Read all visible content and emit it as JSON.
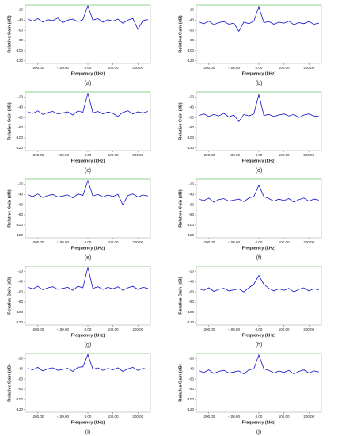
{
  "chart_data": [
    {
      "type": "line",
      "caption": "(a)",
      "xlabel": "Frequency (kHz)",
      "ylabel": "Relative Gain (dB)",
      "color": "#1010cc",
      "xlim": [
        -250,
        250
      ],
      "ylim": [
        -125,
        -10
      ],
      "xticks": [
        {
          "value": -200,
          "label": "-200.00"
        },
        {
          "value": -100,
          "label": "-100.00"
        },
        {
          "value": 0,
          "label": "0.00"
        },
        {
          "value": 100,
          "label": "100.00"
        },
        {
          "value": 200,
          "label": "200.00"
        }
      ],
      "yticks": [
        -20,
        -40,
        -60,
        -80,
        -100,
        -120
      ],
      "x": [
        -240,
        -220,
        -200,
        -180,
        -160,
        -140,
        -120,
        -100,
        -80,
        -60,
        -40,
        -20,
        0,
        20,
        40,
        60,
        80,
        100,
        120,
        140,
        160,
        180,
        200,
        220,
        240
      ],
      "values": [
        -38,
        -42,
        -37,
        -44,
        -39,
        -41,
        -36,
        -45,
        -40,
        -38,
        -43,
        -39,
        -12,
        -40,
        -37,
        -44,
        -39,
        -42,
        -38,
        -46,
        -40,
        -37,
        -58,
        -41,
        -39
      ]
    },
    {
      "type": "line",
      "caption": "(b)",
      "xlabel": "Frequency (kHz)",
      "ylabel": "Relative Gain (dB)",
      "color": "#1010cc",
      "xlim": [
        -250,
        250
      ],
      "ylim": [
        -125,
        -10
      ],
      "xticks": [
        {
          "value": -200,
          "label": "-200.00"
        },
        {
          "value": -100,
          "label": "-100.00"
        },
        {
          "value": 0,
          "label": "0.00"
        },
        {
          "value": 100,
          "label": "100.00"
        },
        {
          "value": 200,
          "label": "200.00"
        }
      ],
      "yticks": [
        -20,
        -40,
        -60,
        -80,
        -100,
        -120
      ],
      "x": [
        -240,
        -220,
        -200,
        -180,
        -160,
        -140,
        -120,
        -100,
        -80,
        -60,
        -40,
        -20,
        0,
        20,
        40,
        60,
        80,
        100,
        120,
        140,
        160,
        180,
        200,
        220,
        240
      ],
      "values": [
        -44,
        -47,
        -42,
        -49,
        -45,
        -43,
        -48,
        -46,
        -62,
        -44,
        -47,
        -42,
        -14,
        -45,
        -43,
        -48,
        -44,
        -46,
        -42,
        -49,
        -45,
        -47,
        -43,
        -48,
        -46
      ]
    },
    {
      "type": "line",
      "caption": "(c)",
      "xlabel": "Frequency (kHz)",
      "ylabel": "Relative Gain (dB)",
      "color": "#1010cc",
      "xlim": [
        -250,
        250
      ],
      "ylim": [
        -125,
        -10
      ],
      "xticks": [
        {
          "value": -200,
          "label": "-200.00"
        },
        {
          "value": -100,
          "label": "-100.00"
        },
        {
          "value": 0,
          "label": "0.00"
        },
        {
          "value": 100,
          "label": "100.00"
        },
        {
          "value": 200,
          "label": "200.00"
        }
      ],
      "yticks": [
        -20,
        -40,
        -60,
        -80,
        -100,
        -120
      ],
      "x": [
        -240,
        -220,
        -200,
        -180,
        -160,
        -140,
        -120,
        -100,
        -80,
        -60,
        -40,
        -20,
        0,
        20,
        40,
        60,
        80,
        100,
        120,
        140,
        160,
        180,
        200,
        220,
        240
      ],
      "values": [
        -49,
        -52,
        -47,
        -54,
        -50,
        -48,
        -53,
        -51,
        -49,
        -55,
        -47,
        -50,
        -12,
        -51,
        -48,
        -53,
        -49,
        -52,
        -58,
        -50,
        -47,
        -53,
        -49,
        -51,
        -48
      ]
    },
    {
      "type": "line",
      "caption": "(d)",
      "xlabel": "Frequency (kHz)",
      "ylabel": "Relative Gain (dB)",
      "color": "#1010cc",
      "xlim": [
        -250,
        250
      ],
      "ylim": [
        -125,
        -10
      ],
      "xticks": [
        {
          "value": -200,
          "label": "-200.00"
        },
        {
          "value": -100,
          "label": "-100.00"
        },
        {
          "value": 0,
          "label": "0.00"
        },
        {
          "value": 100,
          "label": "100.00"
        },
        {
          "value": 200,
          "label": "200.00"
        }
      ],
      "yticks": [
        -20,
        -40,
        -60,
        -80,
        -100,
        -120
      ],
      "x": [
        -240,
        -220,
        -200,
        -180,
        -160,
        -140,
        -120,
        -100,
        -80,
        -60,
        -40,
        -20,
        0,
        20,
        40,
        60,
        80,
        100,
        120,
        140,
        160,
        180,
        200,
        220,
        240
      ],
      "values": [
        -56,
        -53,
        -58,
        -54,
        -57,
        -52,
        -59,
        -55,
        -68,
        -54,
        -57,
        -53,
        -15,
        -56,
        -54,
        -58,
        -55,
        -53,
        -57,
        -54,
        -60,
        -55,
        -53,
        -57,
        -58
      ]
    },
    {
      "type": "line",
      "caption": "(e)",
      "xlabel": "Frequency (kHz)",
      "ylabel": "Relative Gain (dB)",
      "color": "#1010cc",
      "xlim": [
        -250,
        250
      ],
      "ylim": [
        -125,
        -10
      ],
      "xticks": [
        {
          "value": -200,
          "label": "-200.00"
        },
        {
          "value": -100,
          "label": "-100.00"
        },
        {
          "value": 0,
          "label": "0.00"
        },
        {
          "value": 100,
          "label": "100.00"
        },
        {
          "value": 200,
          "label": "200.00"
        }
      ],
      "yticks": [
        -20,
        -40,
        -60,
        -80,
        -100,
        -120
      ],
      "x": [
        -240,
        -220,
        -200,
        -180,
        -160,
        -140,
        -120,
        -100,
        -80,
        -60,
        -40,
        -20,
        0,
        20,
        40,
        60,
        80,
        100,
        120,
        140,
        160,
        180,
        200,
        220,
        240
      ],
      "values": [
        -41,
        -44,
        -39,
        -46,
        -42,
        -40,
        -45,
        -43,
        -41,
        -47,
        -39,
        -42,
        -13,
        -43,
        -40,
        -45,
        -41,
        -44,
        -40,
        -60,
        -42,
        -39,
        -45,
        -41,
        -43
      ]
    },
    {
      "type": "line",
      "caption": "(f)",
      "xlabel": "Frequency (kHz)",
      "ylabel": "Relative Gain (dB)",
      "color": "#1010cc",
      "xlim": [
        -250,
        250
      ],
      "ylim": [
        -125,
        -10
      ],
      "xticks": [
        {
          "value": -200,
          "label": "-200.00"
        },
        {
          "value": -100,
          "label": "-100.00"
        },
        {
          "value": 0,
          "label": "0.00"
        },
        {
          "value": 100,
          "label": "100.00"
        },
        {
          "value": 200,
          "label": "200.00"
        }
      ],
      "yticks": [
        -20,
        -40,
        -60,
        -80,
        -100,
        -120
      ],
      "x": [
        -240,
        -220,
        -200,
        -180,
        -160,
        -140,
        -120,
        -100,
        -80,
        -60,
        -40,
        -20,
        0,
        20,
        40,
        60,
        80,
        100,
        120,
        140,
        160,
        180,
        200,
        220,
        240
      ],
      "values": [
        -49,
        -52,
        -47,
        -55,
        -50,
        -48,
        -53,
        -51,
        -49,
        -54,
        -47,
        -44,
        -22,
        -44,
        -48,
        -53,
        -49,
        -52,
        -48,
        -55,
        -50,
        -47,
        -53,
        -49,
        -51
      ]
    },
    {
      "type": "line",
      "caption": "(g)",
      "xlabel": "Frequency (kHz)",
      "ylabel": "Relative Gain (dB)",
      "color": "#1010cc",
      "xlim": [
        -250,
        250
      ],
      "ylim": [
        -125,
        -10
      ],
      "xticks": [
        {
          "value": -200,
          "label": "-200.00"
        },
        {
          "value": -100,
          "label": "-100.00"
        },
        {
          "value": 0,
          "label": "0.00"
        },
        {
          "value": 100,
          "label": "100.00"
        },
        {
          "value": 200,
          "label": "200.00"
        }
      ],
      "yticks": [
        -20,
        -40,
        -60,
        -80,
        -100,
        -120
      ],
      "x": [
        -240,
        -220,
        -200,
        -180,
        -160,
        -140,
        -120,
        -100,
        -80,
        -60,
        -40,
        -20,
        0,
        20,
        40,
        60,
        80,
        100,
        120,
        140,
        160,
        180,
        200,
        220,
        240
      ],
      "values": [
        -51,
        -54,
        -49,
        -56,
        -52,
        -50,
        -55,
        -53,
        -51,
        -57,
        -49,
        -52,
        -12,
        -53,
        -50,
        -55,
        -51,
        -54,
        -50,
        -57,
        -52,
        -49,
        -55,
        -51,
        -53
      ]
    },
    {
      "type": "line",
      "caption": "(h)",
      "xlabel": "Frequency (kHz)",
      "ylabel": "Relative Gain (dB)",
      "color": "#1010cc",
      "xlim": [
        -250,
        250
      ],
      "ylim": [
        -125,
        -10
      ],
      "xticks": [
        {
          "value": -200,
          "label": "-200.00"
        },
        {
          "value": -100,
          "label": "-100.00"
        },
        {
          "value": 0,
          "label": "0.00"
        },
        {
          "value": 100,
          "label": "100.00"
        },
        {
          "value": 200,
          "label": "200.00"
        }
      ],
      "yticks": [
        -20,
        -40,
        -60,
        -80,
        -100,
        -120
      ],
      "x": [
        -240,
        -220,
        -200,
        -180,
        -160,
        -140,
        -120,
        -100,
        -80,
        -60,
        -40,
        -20,
        0,
        20,
        40,
        60,
        80,
        100,
        120,
        140,
        160,
        180,
        200,
        220,
        240
      ],
      "values": [
        -54,
        -57,
        -52,
        -59,
        -55,
        -53,
        -58,
        -56,
        -54,
        -60,
        -52,
        -45,
        -28,
        -45,
        -53,
        -58,
        -54,
        -57,
        -53,
        -60,
        -55,
        -52,
        -58,
        -54,
        -56
      ]
    },
    {
      "type": "line",
      "caption": "(i)",
      "xlabel": "Frequency (kHz)",
      "ylabel": "Relative Gain (dB)",
      "color": "#1010cc",
      "xlim": [
        -250,
        250
      ],
      "ylim": [
        -125,
        -10
      ],
      "xticks": [
        {
          "value": -200,
          "label": "-200.00"
        },
        {
          "value": -100,
          "label": "-100.00"
        },
        {
          "value": 0,
          "label": "0.00"
        },
        {
          "value": 100,
          "label": "100.00"
        },
        {
          "value": 200,
          "label": "200.00"
        }
      ],
      "yticks": [
        -20,
        -40,
        -60,
        -80,
        -100,
        -120
      ],
      "x": [
        -240,
        -220,
        -200,
        -180,
        -160,
        -140,
        -120,
        -100,
        -80,
        -60,
        -40,
        -20,
        0,
        20,
        40,
        60,
        80,
        100,
        120,
        140,
        160,
        180,
        200,
        220,
        240
      ],
      "values": [
        -39,
        -42,
        -37,
        -44,
        -40,
        -38,
        -43,
        -41,
        -39,
        -45,
        -37,
        -36,
        -12,
        -41,
        -38,
        -43,
        -39,
        -42,
        -38,
        -45,
        -40,
        -37,
        -43,
        -39,
        -41
      ]
    },
    {
      "type": "line",
      "caption": "(j)",
      "xlabel": "Frequency (kHz)",
      "ylabel": "Relative Gain (dB)",
      "color": "#1010cc",
      "xlim": [
        -250,
        250
      ],
      "ylim": [
        -125,
        -10
      ],
      "xticks": [
        {
          "value": -200,
          "label": "-200.00"
        },
        {
          "value": -100,
          "label": "-100.00"
        },
        {
          "value": 0,
          "label": "0.00"
        },
        {
          "value": 100,
          "label": "100.00"
        },
        {
          "value": 200,
          "label": "200.00"
        }
      ],
      "yticks": [
        -20,
        -40,
        -60,
        -80,
        -100,
        -120
      ],
      "x": [
        -240,
        -220,
        -200,
        -180,
        -160,
        -140,
        -120,
        -100,
        -80,
        -60,
        -40,
        -20,
        0,
        20,
        40,
        60,
        80,
        100,
        120,
        140,
        160,
        180,
        200,
        220,
        240
      ],
      "values": [
        -44,
        -47,
        -42,
        -49,
        -45,
        -43,
        -48,
        -46,
        -44,
        -50,
        -42,
        -40,
        -13,
        -40,
        -43,
        -48,
        -44,
        -47,
        -43,
        -50,
        -45,
        -42,
        -48,
        -44,
        -46
      ]
    }
  ]
}
